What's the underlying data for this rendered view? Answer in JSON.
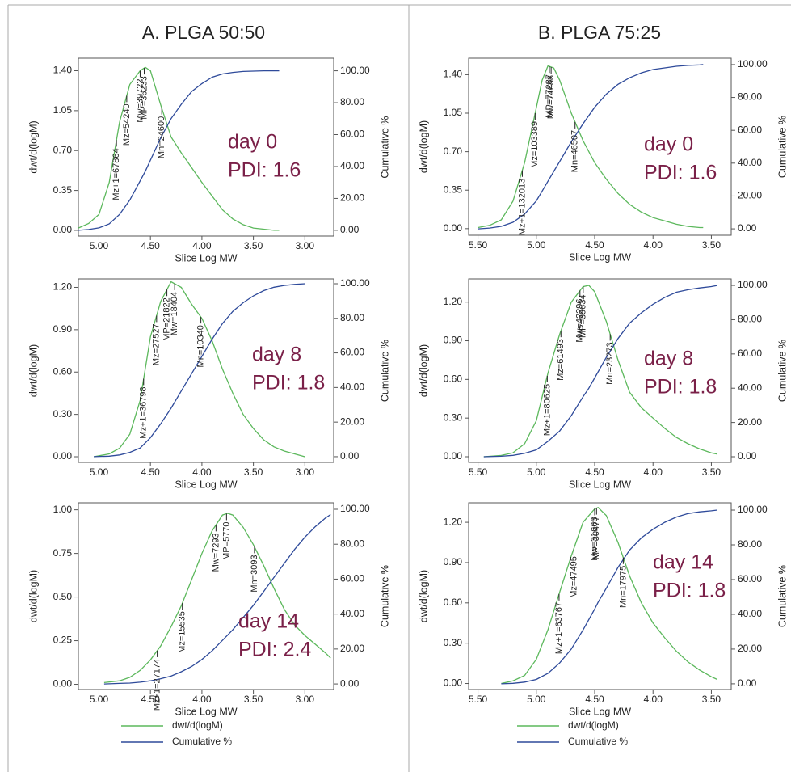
{
  "columns": [
    "A. PLGA 50:50",
    "B. PLGA 75:25"
  ],
  "chart_data": [
    {
      "type": "line",
      "xlabel": "Slice Log MW",
      "ylabel": "dwt/d(logM)",
      "y2label": "Cumulative %",
      "notes": [
        "day 0",
        "PDI: 1.6"
      ],
      "x": [
        5.2,
        5.1,
        5.0,
        4.9,
        4.8,
        4.7,
        4.6,
        4.55,
        4.5,
        4.4,
        4.3,
        4.2,
        4.1,
        4.0,
        3.9,
        3.8,
        3.7,
        3.6,
        3.5,
        3.4,
        3.3,
        3.25
      ],
      "series": [
        {
          "name": "dwt/d(logM)",
          "color": "#5cb85c",
          "values": [
            0.02,
            0.06,
            0.14,
            0.42,
            0.95,
            1.28,
            1.4,
            1.43,
            1.4,
            1.1,
            0.82,
            0.68,
            0.55,
            0.42,
            0.3,
            0.18,
            0.1,
            0.05,
            0.02,
            0.01,
            0.0,
            0.0
          ]
        },
        {
          "name": "Cumulative %",
          "color": "#2e4a9a",
          "axis": "y2",
          "values": [
            0,
            0.5,
            1.5,
            4,
            10,
            19,
            31,
            37,
            44,
            58,
            70,
            79,
            87,
            92,
            96,
            98,
            99,
            99.6,
            99.8,
            100,
            100,
            100
          ]
        }
      ],
      "annotations": [
        {
          "text": "Mz+1=67864",
          "x": 4.83
        },
        {
          "text": "Mz=54240",
          "x": 4.73
        },
        {
          "text": "Mw=39722",
          "x": 4.6
        },
        {
          "text": "MP=36233",
          "x": 4.56
        },
        {
          "text": "Mn=24600",
          "x": 4.39
        }
      ],
      "xlim": [
        5.2,
        2.72
      ],
      "xticks": [
        {
          "value": 5,
          "label": "5.00"
        },
        {
          "value": 4.5,
          "label": "4.50"
        },
        {
          "value": 4,
          "label": "4.00"
        },
        {
          "value": 3.5,
          "label": "3.50"
        },
        {
          "value": 3,
          "label": "3.00"
        }
      ],
      "ylim": [
        -0.05,
        1.51
      ],
      "yticks": [
        {
          "value": 0,
          "label": "0.00"
        },
        {
          "value": 0.35,
          "label": "0.35"
        },
        {
          "value": 0.7,
          "label": "0.70"
        },
        {
          "value": 1.05,
          "label": "1.05"
        },
        {
          "value": 1.4,
          "label": "1.40"
        }
      ],
      "y2lim": [
        -3.6,
        107.9
      ],
      "y2ticks": [
        {
          "value": 0,
          "label": "0.00"
        },
        {
          "value": 20,
          "label": "20.00"
        },
        {
          "value": 40,
          "label": "40.00"
        },
        {
          "value": 60,
          "label": "60.00"
        },
        {
          "value": 80,
          "label": "80.00"
        },
        {
          "value": 100,
          "label": "100.00"
        }
      ]
    },
    {
      "type": "line",
      "xlabel": "Slice Log MW",
      "ylabel": "dwt/d(logM)",
      "y2label": "Cumulative %",
      "notes": [
        "day 8",
        "PDI: 1.8"
      ],
      "x": [
        5.05,
        4.9,
        4.8,
        4.7,
        4.6,
        4.5,
        4.4,
        4.3,
        4.2,
        4.1,
        4.0,
        3.9,
        3.8,
        3.7,
        3.6,
        3.5,
        3.4,
        3.3,
        3.2,
        3.1,
        3.0
      ],
      "series": [
        {
          "name": "dwt/d(logM)",
          "color": "#5cb85c",
          "values": [
            0,
            0.02,
            0.06,
            0.16,
            0.4,
            0.85,
            1.1,
            1.24,
            1.2,
            1.08,
            0.98,
            0.82,
            0.62,
            0.45,
            0.3,
            0.2,
            0.12,
            0.07,
            0.04,
            0.02,
            0.0
          ]
        },
        {
          "name": "Cumulative %",
          "color": "#2e4a9a",
          "axis": "y2",
          "values": [
            0,
            0.3,
            1,
            2.5,
            5,
            11,
            19,
            28,
            38,
            48,
            58,
            68,
            77,
            84,
            89,
            93,
            96,
            98,
            99,
            99.6,
            100
          ]
        }
      ],
      "annotations": [
        {
          "text": "Mz+1=36798",
          "x": 4.566
        },
        {
          "text": "Mz=27527",
          "x": 4.44
        },
        {
          "text": "MP=21822",
          "x": 4.34
        },
        {
          "text": "Mw=18404",
          "x": 4.265
        },
        {
          "text": "Mn=10340",
          "x": 4.01
        }
      ],
      "xlim": [
        5.2,
        2.72
      ],
      "xticks": [
        {
          "value": 5,
          "label": "5.00"
        },
        {
          "value": 4.5,
          "label": "4.50"
        },
        {
          "value": 4,
          "label": "4.00"
        },
        {
          "value": 3.5,
          "label": "3.50"
        },
        {
          "value": 3,
          "label": "3.00"
        }
      ],
      "ylim": [
        -0.04,
        1.26
      ],
      "yticks": [
        {
          "value": 0,
          "label": "0.00"
        },
        {
          "value": 0.3,
          "label": "0.30"
        },
        {
          "value": 0.6,
          "label": "0.60"
        },
        {
          "value": 0.9,
          "label": "0.90"
        },
        {
          "value": 1.2,
          "label": "1.20"
        }
      ],
      "y2lim": [
        -3.3,
        102.8
      ],
      "y2ticks": [
        {
          "value": 0,
          "label": "0.00"
        },
        {
          "value": 20,
          "label": "20.00"
        },
        {
          "value": 40,
          "label": "40.00"
        },
        {
          "value": 60,
          "label": "60.00"
        },
        {
          "value": 80,
          "label": "80.00"
        },
        {
          "value": 100,
          "label": "100.00"
        }
      ]
    },
    {
      "type": "line",
      "xlabel": "Slice Log MW",
      "ylabel": "dwt/d(logM)",
      "y2label": "Cumulative %",
      "notes": [
        "day 14",
        "PDI: 2.4"
      ],
      "x": [
        4.95,
        4.8,
        4.7,
        4.6,
        4.5,
        4.4,
        4.3,
        4.2,
        4.1,
        4.0,
        3.9,
        3.8,
        3.75,
        3.7,
        3.6,
        3.5,
        3.4,
        3.3,
        3.2,
        3.1,
        3.0,
        2.9,
        2.8,
        2.75
      ],
      "series": [
        {
          "name": "dwt/d(logM)",
          "color": "#5cb85c",
          "values": [
            0.01,
            0.02,
            0.04,
            0.08,
            0.14,
            0.22,
            0.33,
            0.45,
            0.6,
            0.75,
            0.88,
            0.97,
            0.98,
            0.97,
            0.9,
            0.8,
            0.68,
            0.55,
            0.43,
            0.34,
            0.28,
            0.23,
            0.18,
            0.15
          ]
        },
        {
          "name": "Cumulative %",
          "color": "#2e4a9a",
          "axis": "y2",
          "values": [
            0,
            0.3,
            0.5,
            1,
            1.8,
            3,
            4.5,
            7,
            10,
            14,
            19,
            25,
            28,
            31,
            38,
            45,
            53,
            61,
            69,
            77,
            84,
            90,
            95,
            97
          ]
        }
      ],
      "annotations": [
        {
          "text": "Mz+1=27174",
          "x": 4.434
        },
        {
          "text": "Mz=15535",
          "x": 4.19
        },
        {
          "text": "Mw=7293",
          "x": 3.863
        },
        {
          "text": "MP=5770",
          "x": 3.761
        },
        {
          "text": "Mn=3093",
          "x": 3.49
        }
      ],
      "xlim": [
        5.2,
        2.72
      ],
      "xticks": [
        {
          "value": 5,
          "label": "5.00"
        },
        {
          "value": 4.5,
          "label": "4.50"
        },
        {
          "value": 4,
          "label": "4.00"
        },
        {
          "value": 3.5,
          "label": "3.50"
        },
        {
          "value": 3,
          "label": "3.00"
        }
      ],
      "ylim": [
        -0.03,
        1.04
      ],
      "yticks": [
        {
          "value": 0,
          "label": "0.00"
        },
        {
          "value": 0.25,
          "label": "0.25"
        },
        {
          "value": 0.5,
          "label": "0.50"
        },
        {
          "value": 0.75,
          "label": "0.75"
        },
        {
          "value": 1,
          "label": "1.00"
        }
      ],
      "y2lim": [
        -3.2,
        103.7
      ],
      "y2ticks": [
        {
          "value": 0,
          "label": "0.00"
        },
        {
          "value": 20,
          "label": "20.00"
        },
        {
          "value": 40,
          "label": "40.00"
        },
        {
          "value": 60,
          "label": "60.00"
        },
        {
          "value": 80,
          "label": "80.00"
        },
        {
          "value": 100,
          "label": "100.00"
        }
      ]
    },
    {
      "type": "line",
      "xlabel": "Slice Log MW",
      "ylabel": "dwt/d(logM)",
      "y2label": "Cumulative %",
      "notes": [
        "day 0",
        "PDI: 1.6"
      ],
      "x": [
        5.5,
        5.4,
        5.3,
        5.2,
        5.1,
        5.0,
        4.95,
        4.9,
        4.85,
        4.8,
        4.7,
        4.6,
        4.5,
        4.4,
        4.3,
        4.2,
        4.1,
        4.0,
        3.9,
        3.8,
        3.7,
        3.6,
        3.57
      ],
      "series": [
        {
          "name": "dwt/d(logM)",
          "color": "#5cb85c",
          "values": [
            0.01,
            0.03,
            0.08,
            0.25,
            0.6,
            1.1,
            1.35,
            1.48,
            1.46,
            1.35,
            1.05,
            0.8,
            0.6,
            0.45,
            0.32,
            0.22,
            0.15,
            0.1,
            0.07,
            0.04,
            0.02,
            0.01,
            0.01
          ]
        },
        {
          "name": "Cumulative %",
          "color": "#2e4a9a",
          "axis": "y2",
          "values": [
            0,
            0.5,
            1.5,
            4,
            9,
            17,
            23,
            29,
            35,
            41,
            53,
            64,
            74,
            82,
            88,
            92,
            95,
            97,
            98,
            99,
            99.5,
            99.8,
            100
          ]
        }
      ],
      "annotations": [
        {
          "text": "Mz+1=132013",
          "x": 5.12
        },
        {
          "text": "Mz=103389",
          "x": 5.01
        },
        {
          "text": "MP=77287",
          "x": 4.888
        },
        {
          "text": "Mw=74688",
          "x": 4.873
        },
        {
          "text": "Mn=46507",
          "x": 4.668
        }
      ],
      "xlim": [
        5.58,
        3.33
      ],
      "xticks": [
        {
          "value": 5.5,
          "label": "5.50"
        },
        {
          "value": 5,
          "label": "5.00"
        },
        {
          "value": 4.5,
          "label": "4.50"
        },
        {
          "value": 4,
          "label": "4.00"
        },
        {
          "value": 3.5,
          "label": "3.50"
        }
      ],
      "ylim": [
        -0.06,
        1.55
      ],
      "yticks": [
        {
          "value": 0,
          "label": "0.00"
        },
        {
          "value": 0.35,
          "label": "0.35"
        },
        {
          "value": 0.7,
          "label": "0.70"
        },
        {
          "value": 1.05,
          "label": "1.05"
        },
        {
          "value": 1.4,
          "label": "1.40"
        }
      ],
      "y2lim": [
        -3.9,
        103.9
      ],
      "y2ticks": [
        {
          "value": 0,
          "label": "0.00"
        },
        {
          "value": 20,
          "label": "20.00"
        },
        {
          "value": 40,
          "label": "40.00"
        },
        {
          "value": 60,
          "label": "60.00"
        },
        {
          "value": 80,
          "label": "80.00"
        },
        {
          "value": 100,
          "label": "100.00"
        }
      ]
    },
    {
      "type": "line",
      "xlabel": "Slice Log MW",
      "ylabel": "dwt/d(logM)",
      "y2label": "Cumulative %",
      "notes": [
        "day 8",
        "PDI: 1.8"
      ],
      "x": [
        5.45,
        5.3,
        5.2,
        5.1,
        5.0,
        4.9,
        4.8,
        4.7,
        4.6,
        4.55,
        4.5,
        4.4,
        4.3,
        4.2,
        4.1,
        4.0,
        3.9,
        3.8,
        3.7,
        3.6,
        3.5,
        3.45
      ],
      "series": [
        {
          "name": "dwt/d(logM)",
          "color": "#5cb85c",
          "values": [
            0,
            0.01,
            0.03,
            0.1,
            0.28,
            0.65,
            0.95,
            1.2,
            1.32,
            1.33,
            1.28,
            1.05,
            0.75,
            0.5,
            0.38,
            0.3,
            0.22,
            0.15,
            0.1,
            0.06,
            0.03,
            0.02
          ]
        },
        {
          "name": "Cumulative %",
          "color": "#2e4a9a",
          "axis": "y2",
          "values": [
            0,
            0.3,
            0.8,
            2,
            4,
            9,
            15,
            24,
            35,
            40,
            46,
            58,
            69,
            78,
            84,
            89,
            93,
            96,
            97.5,
            98.5,
            99.3,
            100
          ]
        }
      ],
      "annotations": [
        {
          "text": "Mz+1=80625",
          "x": 4.906
        },
        {
          "text": "Mz=61493",
          "x": 4.789
        },
        {
          "text": "Mw=42296",
          "x": 4.626
        },
        {
          "text": "MP=39634",
          "x": 4.598
        },
        {
          "text": "Mn=23273",
          "x": 4.367
        }
      ],
      "xlim": [
        5.58,
        3.33
      ],
      "xticks": [
        {
          "value": 5.5,
          "label": "5.50"
        },
        {
          "value": 5,
          "label": "5.00"
        },
        {
          "value": 4.5,
          "label": "4.50"
        },
        {
          "value": 4,
          "label": "4.00"
        },
        {
          "value": 3.5,
          "label": "3.50"
        }
      ],
      "ylim": [
        -0.044,
        1.38
      ],
      "yticks": [
        {
          "value": 0,
          "label": "0.00"
        },
        {
          "value": 0.3,
          "label": "0.30"
        },
        {
          "value": 0.6,
          "label": "0.60"
        },
        {
          "value": 0.9,
          "label": "0.90"
        },
        {
          "value": 1.2,
          "label": "1.20"
        }
      ],
      "y2lim": [
        -3.3,
        103.8
      ],
      "y2ticks": [
        {
          "value": 0,
          "label": "0.00"
        },
        {
          "value": 20,
          "label": "20.00"
        },
        {
          "value": 40,
          "label": "40.00"
        },
        {
          "value": 60,
          "label": "60.00"
        },
        {
          "value": 80,
          "label": "80.00"
        },
        {
          "value": 100,
          "label": "100.00"
        }
      ]
    },
    {
      "type": "line",
      "xlabel": "Slice Log MW",
      "ylabel": "dwt/d(logM)",
      "y2label": "Cumulative %",
      "notes": [
        "day 14",
        "PDI: 1.8"
      ],
      "x": [
        5.3,
        5.2,
        5.1,
        5.0,
        4.9,
        4.8,
        4.7,
        4.6,
        4.5,
        4.47,
        4.4,
        4.3,
        4.2,
        4.1,
        4.0,
        3.9,
        3.8,
        3.7,
        3.6,
        3.5,
        3.45
      ],
      "series": [
        {
          "name": "dwt/d(logM)",
          "color": "#5cb85c",
          "values": [
            0,
            0.02,
            0.06,
            0.18,
            0.4,
            0.68,
            0.95,
            1.2,
            1.3,
            1.31,
            1.25,
            1.05,
            0.8,
            0.6,
            0.45,
            0.34,
            0.24,
            0.16,
            0.1,
            0.05,
            0.03
          ]
        },
        {
          "name": "Cumulative %",
          "color": "#2e4a9a",
          "axis": "y2",
          "values": [
            0,
            0.3,
            1,
            2.5,
            6,
            12,
            20,
            31,
            43,
            47,
            55,
            67,
            77,
            84,
            89,
            93,
            96,
            98,
            99,
            99.6,
            100
          ]
        }
      ],
      "annotations": [
        {
          "text": "Mz+1=63767",
          "x": 4.805
        },
        {
          "text": "Mz=47495",
          "x": 4.677
        },
        {
          "text": "Mw=31663",
          "x": 4.5
        },
        {
          "text": "MP=30477",
          "x": 4.484
        },
        {
          "text": "Mn=17975",
          "x": 4.255
        }
      ],
      "xlim": [
        5.58,
        3.33
      ],
      "xticks": [
        {
          "value": 5.5,
          "label": "5.50"
        },
        {
          "value": 5,
          "label": "5.00"
        },
        {
          "value": 4.5,
          "label": "4.50"
        },
        {
          "value": 4,
          "label": "4.00"
        },
        {
          "value": 3.5,
          "label": "3.50"
        }
      ],
      "ylim": [
        -0.045,
        1.345
      ],
      "yticks": [
        {
          "value": 0,
          "label": "0.00"
        },
        {
          "value": 0.3,
          "label": "0.30"
        },
        {
          "value": 0.6,
          "label": "0.60"
        },
        {
          "value": 0.9,
          "label": "0.90"
        },
        {
          "value": 1.2,
          "label": "1.20"
        }
      ],
      "y2lim": [
        -3.3,
        104.2
      ],
      "y2ticks": [
        {
          "value": 0,
          "label": "0.00"
        },
        {
          "value": 20,
          "label": "20.00"
        },
        {
          "value": 40,
          "label": "40.00"
        },
        {
          "value": 60,
          "label": "60.00"
        },
        {
          "value": 80,
          "label": "80.00"
        },
        {
          "value": 100,
          "label": "100.00"
        }
      ]
    }
  ]
}
